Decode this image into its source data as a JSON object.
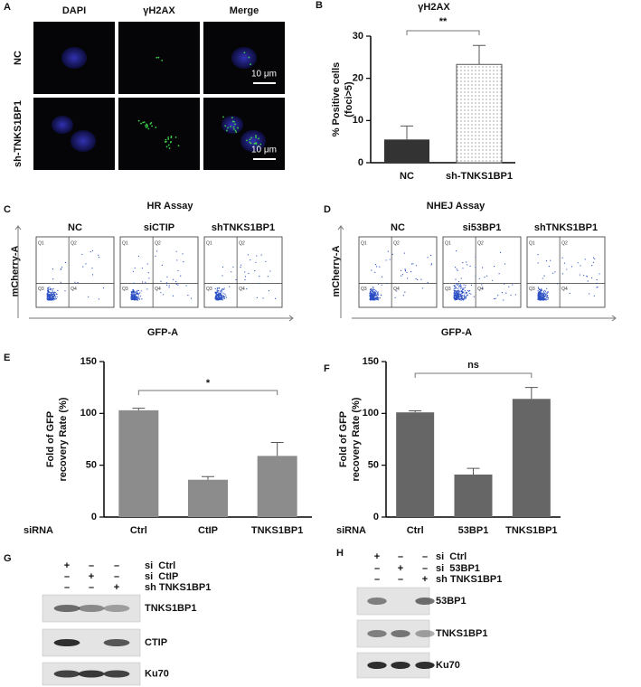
{
  "microscopy": {
    "label": "A",
    "columns": [
      "DAPI",
      "γH2AX",
      "Merge"
    ],
    "rows": [
      "NC",
      "sh-TNKS1BP1"
    ],
    "scale_bars": [
      "10 μm",
      "10 μm"
    ]
  },
  "chart_data": [
    {
      "type": "bar",
      "label": "B",
      "title": "γH2AX",
      "ylabel": [
        "% Positive cells",
        "(foci>5)"
      ],
      "categories": [
        "NC",
        "sh-TNKS1BP1"
      ],
      "values": [
        5.5,
        23.3
      ],
      "errors": [
        3.2,
        4.5
      ],
      "colors": [
        "#333333",
        "dotted"
      ],
      "ylim": [
        0,
        30
      ],
      "yticks": [
        0,
        10,
        20,
        30
      ],
      "annotation": "**"
    },
    {
      "type": "bar",
      "label": "E",
      "ylabel": [
        "Fold of GFP",
        "recovery Rate (%)"
      ],
      "x_prefix": "siRNA",
      "categories": [
        "Ctrl",
        "CtIP",
        "TNKS1BP1"
      ],
      "values": [
        103,
        36,
        59
      ],
      "errors": [
        2,
        3,
        13
      ],
      "colors": [
        "#8c8c8c",
        "#8c8c8c",
        "#8c8c8c"
      ],
      "ylim": [
        0,
        150
      ],
      "yticks": [
        0,
        50,
        100,
        150
      ],
      "annotation": "*"
    },
    {
      "type": "bar",
      "label": "F",
      "ylabel": [
        "Fold of GFP",
        "recovery Rate (%)"
      ],
      "x_prefix": "siRNA",
      "categories": [
        "Ctrl",
        "53BP1",
        "TNKS1BP1"
      ],
      "values": [
        101,
        41,
        114
      ],
      "errors": [
        1.5,
        6,
        11
      ],
      "colors": [
        "#666666",
        "#666666",
        "#666666"
      ],
      "ylim": [
        0,
        150
      ],
      "yticks": [
        0,
        50,
        100,
        150
      ],
      "annotation": "ns"
    }
  ],
  "flow": [
    {
      "label": "C",
      "title": "HR Assay",
      "samples": [
        "NC",
        "siCTIP",
        "shTNKS1BP1"
      ],
      "ylabel": "mCherry-A",
      "xlabel": "GFP-A",
      "quadrants": [
        "Q1",
        "Q2",
        "Q3",
        "Q4"
      ]
    },
    {
      "label": "D",
      "title": "NHEJ Assay",
      "samples": [
        "NC",
        "si53BP1",
        "shTNKS1BP1"
      ],
      "ylabel": "mCherry-A",
      "xlabel": "GFP-A",
      "quadrants": [
        "Q1",
        "Q2",
        "Q3",
        "Q4"
      ]
    }
  ],
  "blots": [
    {
      "label": "G",
      "signs": [
        [
          "+",
          "–",
          "–"
        ],
        [
          "–",
          "+",
          "–"
        ],
        [
          "–",
          "–",
          "+"
        ]
      ],
      "conditions": [
        "si  Ctrl",
        "si  CtIP",
        "sh TNKS1BP1"
      ],
      "bands": [
        "TNKS1BP1",
        "CTIP",
        "Ku70"
      ]
    },
    {
      "label": "H",
      "signs": [
        [
          "+",
          "–",
          "–"
        ],
        [
          "–",
          "+",
          "–"
        ],
        [
          "–",
          "–",
          "+"
        ]
      ],
      "conditions": [
        "si  Ctrl",
        "si  53BP1",
        "sh TNKS1BP1"
      ],
      "bands": [
        "53BP1",
        "TNKS1BP1",
        "Ku70"
      ]
    }
  ]
}
